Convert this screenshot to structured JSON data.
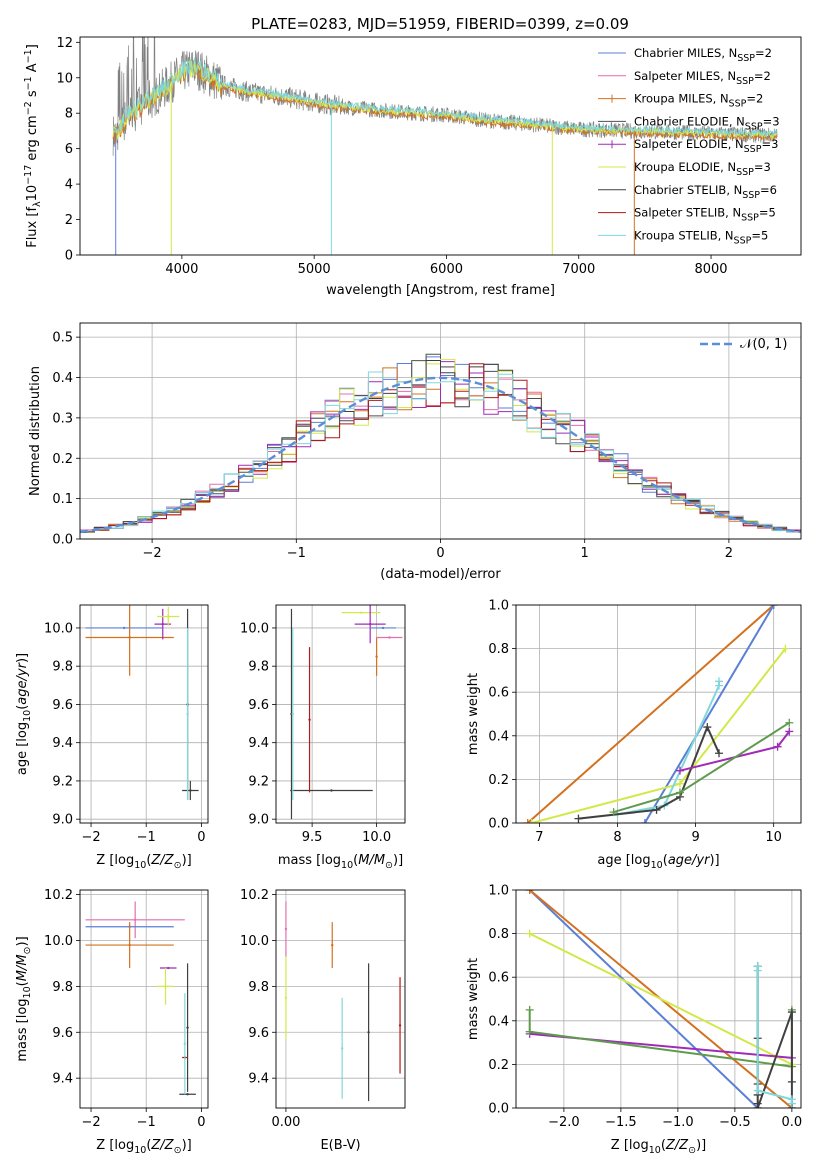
{
  "figure_title": "PLATE=0283, MJD=51959, FIBERID=0399, z=0.09",
  "colors": {
    "Chabrier MILES": "#5b7fd6",
    "Salpeter MILES": "#e26fae",
    "Kroupa MILES": "#d4711f",
    "Chabrier ELODIE": "#4f4f4f",
    "Salpeter ELODIE": "#a02bb8",
    "Kroupa ELODIE": "#d3e84a",
    "Chabrier STELIB": "#404040",
    "Salpeter STELIB": "#b01a1a",
    "Kroupa STELIB": "#7ed8dc",
    "ELODIE-green": "#5f9a4d",
    "gauss": "#5b8ed8"
  },
  "chart_data": [
    {
      "type": "line",
      "title": "PLATE=0283, MJD=51959, FIBERID=0399, z=0.09",
      "xlabel": "wavelength [Angstrom, rest frame]",
      "ylabel": "Flux [f_λ 10^-17 erg cm^-2 s^-1 A^-1]",
      "xlim": [
        3230,
        8680
      ],
      "ylim": [
        0,
        12.3
      ],
      "xticks": [
        4000,
        5000,
        6000,
        7000,
        8000
      ],
      "yticks": [
        0,
        2,
        4,
        6,
        8,
        10,
        12
      ],
      "grid": false,
      "legend_position": "right",
      "legend": [
        {
          "base": "Chabrier MILES, N",
          "sub": "SSP",
          "tail": "=2",
          "color_key": "Chabrier MILES"
        },
        {
          "base": "Salpeter MILES, N",
          "sub": "SSP",
          "tail": "=2",
          "color_key": "Salpeter MILES"
        },
        {
          "base": "Kroupa MILES, N",
          "sub": "SSP",
          "tail": "=2",
          "color_key": "Kroupa MILES"
        },
        {
          "base": "Chabrier ELODIE, N",
          "sub": "SSP",
          "tail": "=3",
          "color_key": "Chabrier ELODIE"
        },
        {
          "base": "Salpeter ELODIE, N",
          "sub": "SSP",
          "tail": "=3",
          "color_key": "Salpeter ELODIE"
        },
        {
          "base": "Kroupa ELODIE, N",
          "sub": "SSP",
          "tail": "=3",
          "color_key": "Kroupa ELODIE"
        },
        {
          "base": "Chabrier STELIB, N",
          "sub": "SSP",
          "tail": "=6",
          "color_key": "Chabrier STELIB"
        },
        {
          "base": "Salpeter STELIB, N",
          "sub": "SSP",
          "tail": "=5",
          "color_key": "Salpeter STELIB"
        },
        {
          "base": "Kroupa STELIB, N",
          "sub": "SSP",
          "tail": "=5",
          "color_key": "Kroupa STELIB"
        }
      ],
      "continuum": {
        "x": [
          3500,
          3550,
          3600,
          3700,
          3800,
          3900,
          4000,
          4100,
          4200,
          4300,
          4500,
          4800,
          5000,
          5300,
          5600,
          6000,
          6300,
          6600,
          7000,
          7400,
          7800,
          8200,
          8500
        ],
        "y": [
          6.8,
          7.4,
          7.9,
          8.5,
          9.0,
          9.6,
          10.3,
          10.6,
          10.1,
          9.6,
          9.2,
          8.9,
          8.6,
          8.3,
          8.1,
          7.9,
          7.6,
          7.4,
          7.1,
          7.0,
          6.9,
          6.8,
          6.75
        ]
      },
      "drops": [
        {
          "x": 3500,
          "y": 0.0,
          "color_key": "Chabrier MILES"
        },
        {
          "x": 3920,
          "y": 0.0,
          "color_key": "Kroupa ELODIE"
        },
        {
          "x": 5130,
          "y": 0.0,
          "color_key": "Kroupa STELIB"
        },
        {
          "x": 6800,
          "y": 0.0,
          "color_key": "Kroupa ELODIE"
        },
        {
          "x": 7420,
          "y": 0.0,
          "color_key": "Kroupa MILES"
        }
      ]
    },
    {
      "type": "bar",
      "xlabel": "(data-model)/error",
      "ylabel": "Normed distribution",
      "xlim": [
        -2.5,
        2.5
      ],
      "ylim": [
        0,
        0.535
      ],
      "xticks": [
        -2,
        -1,
        0,
        1,
        2
      ],
      "yticks": [
        0.0,
        0.1,
        0.2,
        0.3,
        0.4,
        0.5
      ],
      "grid": true,
      "legend": [
        {
          "label": "𝒩(0, 1)",
          "color_key": "gauss",
          "style": "dashed"
        }
      ],
      "bin_width": 0.1,
      "curve": "N(0,1)"
    },
    {
      "type": "scatter",
      "xlabel": "Z [log10(Z/Z⊙)]",
      "ylabel": "age  [log10(age/yr)]",
      "xlim": [
        -2.2,
        0.12
      ],
      "ylim": [
        8.98,
        10.12
      ],
      "xticks": [
        -2,
        -1,
        0
      ],
      "yticks": [
        9.0,
        9.2,
        9.4,
        9.6,
        9.8,
        10.0
      ],
      "grid": true,
      "points": [
        {
          "x": -1.4,
          "y": 10.0,
          "xerr": 0.7,
          "yerr": 0.0,
          "color_key": "Chabrier MILES"
        },
        {
          "x": -1.3,
          "y": 9.95,
          "xerr": 0.8,
          "yerr": 0.2,
          "color_key": "Kroupa MILES"
        },
        {
          "x": -0.7,
          "y": 10.02,
          "xerr": 0.15,
          "yerr": 0.08,
          "color_key": "Salpeter ELODIE"
        },
        {
          "x": -0.6,
          "y": 10.06,
          "xerr": 0.2,
          "yerr": 0.05,
          "color_key": "Kroupa ELODIE"
        },
        {
          "x": -0.25,
          "y": 9.6,
          "xerr": 0.0,
          "yerr": 0.5,
          "color_key": "Chabrier STELIB"
        },
        {
          "x": -0.2,
          "y": 9.15,
          "xerr": 0.15,
          "yerr": 0.05,
          "color_key": "Chabrier STELIB"
        },
        {
          "x": -0.25,
          "y": 9.55,
          "xerr": 0.0,
          "yerr": 0.45,
          "color_key": "Kroupa STELIB"
        }
      ]
    },
    {
      "type": "scatter",
      "xlabel": "mass [log10(M/M⊙)]",
      "ylabel": "",
      "xlim": [
        9.22,
        10.22
      ],
      "ylim": [
        8.98,
        10.12
      ],
      "xticks": [
        9.5,
        10.0
      ],
      "yticks": [
        9.0,
        9.2,
        9.4,
        9.6,
        9.8,
        10.0
      ],
      "grid": true,
      "points": [
        {
          "x": 9.65,
          "y": 9.15,
          "xerr": 0.32,
          "yerr": 0.0,
          "color_key": "Chabrier STELIB"
        },
        {
          "x": 9.34,
          "y": 9.55,
          "xerr": 0.0,
          "yerr": 0.55,
          "color_key": "Chabrier STELIB"
        },
        {
          "x": 9.35,
          "y": 9.55,
          "xerr": 0.0,
          "yerr": 0.45,
          "color_key": "Kroupa STELIB"
        },
        {
          "x": 9.48,
          "y": 9.52,
          "xerr": 0.0,
          "yerr": 0.38,
          "color_key": "Salpeter STELIB"
        },
        {
          "x": 9.88,
          "y": 10.08,
          "xerr": 0.15,
          "yerr": 0.0,
          "color_key": "Kroupa ELODIE"
        },
        {
          "x": 9.95,
          "y": 10.02,
          "xerr": 0.12,
          "yerr": 0.1,
          "color_key": "Salpeter ELODIE"
        },
        {
          "x": 10.05,
          "y": 10.0,
          "xerr": 0.1,
          "yerr": 0.0,
          "color_key": "Chabrier MILES"
        },
        {
          "x": 10.1,
          "y": 9.95,
          "xerr": 0.1,
          "yerr": 0.0,
          "color_key": "Salpeter MILES"
        },
        {
          "x": 10.0,
          "y": 9.85,
          "xerr": 0.0,
          "yerr": 0.1,
          "color_key": "Kroupa MILES"
        }
      ]
    },
    {
      "type": "line",
      "xlabel": "age  [log10(age/yr)]",
      "ylabel": "mass weight",
      "xlim": [
        6.7,
        10.35
      ],
      "ylim": [
        0,
        1.0
      ],
      "xticks": [
        7,
        8,
        9,
        10
      ],
      "yticks": [
        0.0,
        0.2,
        0.4,
        0.6,
        0.8,
        1.0
      ],
      "grid": true,
      "series": [
        {
          "color_key": "Kroupa MILES",
          "x": [
            6.85,
            10.0
          ],
          "y": [
            0.0,
            1.0
          ]
        },
        {
          "color_key": "Chabrier MILES",
          "x": [
            8.35,
            10.0
          ],
          "y": [
            0.0,
            1.0
          ]
        },
        {
          "color_key": "Kroupa ELODIE",
          "x": [
            6.9,
            8.8,
            10.15
          ],
          "y": [
            0.0,
            0.18,
            0.8
          ]
        },
        {
          "color_key": "Kroupa STELIB",
          "x": [
            8.0,
            8.6,
            9.3,
            9.3
          ],
          "y": [
            0.04,
            0.08,
            0.63,
            0.65
          ]
        },
        {
          "color_key": "Chabrier STELIB",
          "x": [
            7.5,
            8.5,
            8.8,
            9.15,
            9.3
          ],
          "y": [
            0.02,
            0.06,
            0.12,
            0.44,
            0.32
          ]
        },
        {
          "color_key": "Salpeter ELODIE",
          "x": [
            8.8,
            10.05,
            10.2
          ],
          "y": [
            0.24,
            0.35,
            0.42
          ]
        },
        {
          "color_key": "ELODIE-green",
          "x": [
            7.95,
            8.8,
            10.2
          ],
          "y": [
            0.05,
            0.14,
            0.46
          ]
        }
      ]
    },
    {
      "type": "scatter",
      "xlabel": "Z [log10(Z/Z⊙)]",
      "ylabel": "mass [log10(M/M⊙)]",
      "xlim": [
        -2.2,
        0.12
      ],
      "ylim": [
        9.27,
        10.22
      ],
      "xticks": [
        -2,
        -1,
        0
      ],
      "yticks": [
        9.4,
        9.6,
        9.8,
        10.0,
        10.2
      ],
      "grid": true,
      "points": [
        {
          "x": -1.2,
          "y": 10.09,
          "xerr": 0.9,
          "yerr": 0.08,
          "color_key": "Salpeter MILES"
        },
        {
          "x": -1.3,
          "y": 10.06,
          "xerr": 0.8,
          "yerr": 0.0,
          "color_key": "Chabrier MILES"
        },
        {
          "x": -1.3,
          "y": 9.98,
          "xerr": 0.8,
          "yerr": 0.1,
          "color_key": "Kroupa MILES"
        },
        {
          "x": -0.6,
          "y": 9.88,
          "xerr": 0.15,
          "yerr": 0.0,
          "color_key": "Salpeter ELODIE"
        },
        {
          "x": -0.65,
          "y": 9.8,
          "xerr": 0.15,
          "yerr": 0.08,
          "color_key": "Kroupa ELODIE"
        },
        {
          "x": -0.25,
          "y": 9.62,
          "xerr": 0.0,
          "yerr": 0.28,
          "color_key": "Chabrier STELIB"
        },
        {
          "x": -0.3,
          "y": 9.49,
          "xerr": 0.05,
          "yerr": 0.0,
          "color_key": "Salpeter STELIB"
        },
        {
          "x": -0.25,
          "y": 9.33,
          "xerr": 0.15,
          "yerr": 0.0,
          "color_key": "Chabrier STELIB"
        },
        {
          "x": -0.3,
          "y": 9.55,
          "xerr": 0.0,
          "yerr": 0.22,
          "color_key": "Kroupa STELIB"
        }
      ]
    },
    {
      "type": "scatter",
      "xlabel": "E(B-V)",
      "ylabel": "",
      "xlim": [
        -0.003,
        0.036
      ],
      "ylim": [
        9.27,
        10.22
      ],
      "xticks": [
        0.0
      ],
      "xticklabels": [
        "0.00"
      ],
      "yticks": [
        9.4,
        9.6,
        9.8,
        10.0,
        10.2
      ],
      "grid": true,
      "points": [
        {
          "x": 0.0,
          "y": 10.05,
          "xerr": 0.0,
          "yerr": 0.12,
          "color_key": "Salpeter MILES"
        },
        {
          "x": 0.0,
          "y": 9.75,
          "xerr": 0.0,
          "yerr": 0.18,
          "color_key": "Kroupa ELODIE"
        },
        {
          "x": 0.014,
          "y": 9.98,
          "xerr": 0.0,
          "yerr": 0.1,
          "color_key": "Kroupa MILES"
        },
        {
          "x": 0.017,
          "y": 9.53,
          "xerr": 0.0,
          "yerr": 0.22,
          "color_key": "Kroupa STELIB"
        },
        {
          "x": 0.025,
          "y": 9.6,
          "xerr": 0.0,
          "yerr": 0.3,
          "color_key": "Chabrier STELIB"
        },
        {
          "x": 0.0345,
          "y": 9.63,
          "xerr": 0.0,
          "yerr": 0.21,
          "color_key": "Salpeter STELIB"
        }
      ]
    },
    {
      "type": "line",
      "xlabel": "Z [log10(Z/Z⊙)]",
      "ylabel": "mass weight",
      "xlim": [
        -2.42,
        0.08
      ],
      "ylim": [
        0,
        1.0
      ],
      "xticks": [
        -2.0,
        -1.5,
        -1.0,
        -0.5,
        0.0
      ],
      "xticklabels": [
        "−2.0",
        "−1.5",
        "−1.0",
        "−0.5",
        "0.0"
      ],
      "yticks": [
        0.0,
        0.2,
        0.4,
        0.6,
        0.8,
        1.0
      ],
      "grid": true,
      "series": [
        {
          "color_key": "Chabrier MILES",
          "x": [
            -2.3,
            -0.3
          ],
          "y": [
            1.0,
            0.0
          ]
        },
        {
          "color_key": "Kroupa MILES",
          "x": [
            -2.3,
            0.0
          ],
          "y": [
            1.0,
            0.0
          ]
        },
        {
          "color_key": "Kroupa ELODIE",
          "x": [
            -2.3,
            0.0
          ],
          "y": [
            0.8,
            0.2
          ]
        },
        {
          "color_key": "Salpeter ELODIE",
          "x": [
            -2.3,
            0.0
          ],
          "y": [
            0.34,
            0.23
          ]
        },
        {
          "color_key": "ELODIE-green",
          "x": [
            -2.3,
            -2.3,
            0.0,
            0.0
          ],
          "y": [
            0.45,
            0.35,
            0.19,
            0.45
          ]
        },
        {
          "color_key": "Chabrier STELIB",
          "x": [
            -0.3,
            -0.3,
            -0.3,
            -0.3,
            -0.3,
            -0.3,
            0.0,
            0.0,
            0.0
          ],
          "y": [
            0.65,
            0.32,
            0.11,
            0.06,
            0.02,
            0.0,
            0.44,
            0.12,
            0.0
          ]
        },
        {
          "color_key": "Kroupa STELIB",
          "x": [
            -0.3,
            -0.3,
            -0.3,
            0.0,
            0.0
          ],
          "y": [
            0.65,
            0.63,
            0.08,
            0.04,
            0.02
          ]
        }
      ]
    }
  ]
}
